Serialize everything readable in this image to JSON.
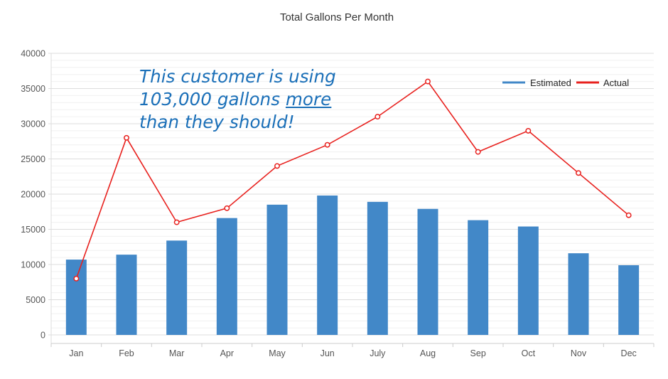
{
  "chart_data": {
    "type": "bar",
    "title": "Total Gallons Per Month",
    "categories": [
      "Jan",
      "Feb",
      "Mar",
      "Apr",
      "May",
      "Jun",
      "July",
      "Aug",
      "Sep",
      "Oct",
      "Nov",
      "Dec"
    ],
    "series": [
      {
        "name": "Estimated",
        "type": "bar",
        "color": "#4288c8",
        "values": [
          10700,
          11400,
          13400,
          16600,
          18500,
          19800,
          18900,
          17900,
          16300,
          15400,
          11600,
          9900
        ]
      },
      {
        "name": "Actual",
        "type": "line",
        "color": "#e8211e",
        "values": [
          8000,
          28000,
          16000,
          18000,
          24000,
          27000,
          31000,
          36000,
          26000,
          29000,
          23000,
          17000
        ]
      }
    ],
    "yticks": [
      0,
      5000,
      10000,
      15000,
      20000,
      25000,
      30000,
      35000,
      40000
    ],
    "ylim": [
      0,
      40000
    ],
    "xlabel": "",
    "ylabel": "",
    "grid": true,
    "legend_position": "top-right"
  },
  "annotation": {
    "line1": "This customer is using",
    "line2_pre": "103,000 gallons ",
    "line2_underlined": "more",
    "line3": "than they should!"
  }
}
